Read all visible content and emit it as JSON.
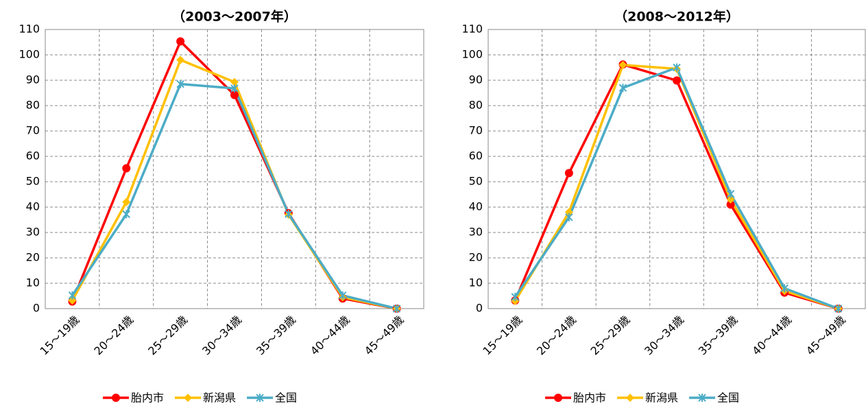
{
  "chart_data": [
    {
      "type": "line",
      "title": "（2003～2007年）",
      "categories": [
        "15～19歳",
        "20～24歳",
        "25～29歳",
        "30～34歳",
        "35～39歳",
        "40～44歳",
        "45～49歳"
      ],
      "series": [
        {
          "name": "胎内市",
          "color": "#ff0000",
          "marker": "circle",
          "values": [
            2.8,
            55.3,
            105.3,
            84.2,
            37.6,
            4,
            0
          ]
        },
        {
          "name": "新潟県",
          "color": "#ffc000",
          "marker": "diamond",
          "values": [
            3.2,
            42,
            98,
            89.3,
            37,
            4.5,
            0
          ]
        },
        {
          "name": "全国",
          "color": "#4bacc6",
          "marker": "asterisk",
          "values": [
            5.2,
            37.2,
            88.5,
            86.8,
            37.3,
            5.2,
            0
          ]
        }
      ],
      "ylim": [
        0,
        110
      ],
      "yticks": [
        0,
        10,
        20,
        30,
        40,
        50,
        60,
        70,
        80,
        90,
        100,
        110
      ],
      "grid": true,
      "legend": "bottom"
    },
    {
      "type": "line",
      "title": "（2008～2012年）",
      "categories": [
        "15～19歳",
        "20～24歳",
        "25～29歳",
        "30～34歳",
        "35～39歳",
        "40～44歳",
        "45～49歳"
      ],
      "series": [
        {
          "name": "胎内市",
          "color": "#ff0000",
          "marker": "circle",
          "values": [
            3.2,
            53.4,
            96.2,
            89.9,
            41,
            6.3,
            0
          ]
        },
        {
          "name": "新潟県",
          "color": "#ffc000",
          "marker": "diamond",
          "values": [
            3,
            38,
            96,
            94.5,
            43,
            7,
            0
          ]
        },
        {
          "name": "全国",
          "color": "#4bacc6",
          "marker": "asterisk",
          "values": [
            4.6,
            36,
            87,
            95,
            45.2,
            8,
            0
          ]
        }
      ],
      "ylim": [
        0,
        110
      ],
      "yticks": [
        0,
        10,
        20,
        30,
        40,
        50,
        60,
        70,
        80,
        90,
        100,
        110
      ],
      "grid": true,
      "legend": "bottom"
    }
  ]
}
